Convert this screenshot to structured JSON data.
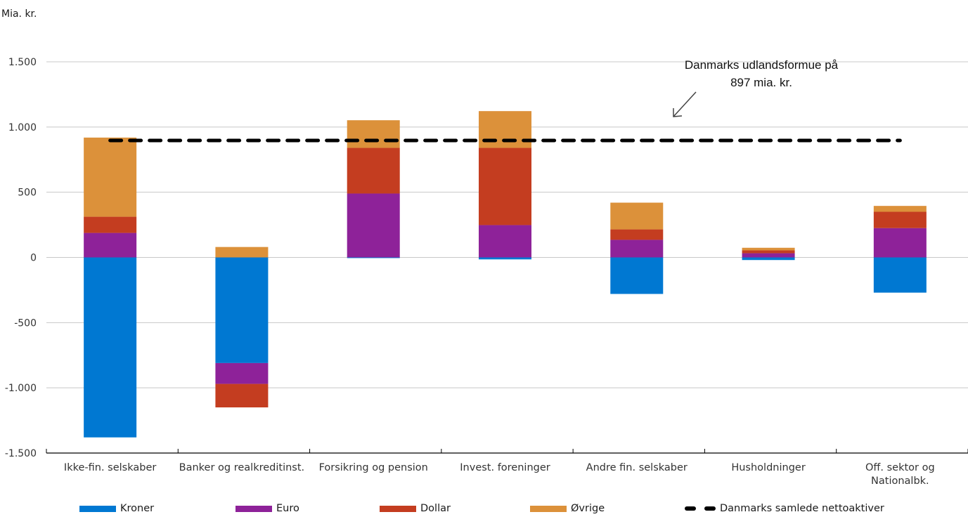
{
  "chart_data": {
    "type": "bar",
    "stacked": true,
    "title": "",
    "ylabel": "Mia. kr.",
    "xlabel": "",
    "ylim": [
      -1500,
      1500
    ],
    "yticks": [
      1500,
      1000,
      500,
      0,
      -500,
      -1000,
      -1500
    ],
    "ytick_labels": [
      "1.500",
      "1.000",
      "500",
      "0",
      "-500",
      "-1.000",
      "-1.500"
    ],
    "grid": true,
    "categories": [
      [
        "Ikke-fin.  selskaber"
      ],
      [
        "Banker og realkreditinst."
      ],
      [
        "Forsikring og pension"
      ],
      [
        "Invest. foreninger"
      ],
      [
        "Andre fin. selskaber"
      ],
      [
        "Husholdninger"
      ],
      [
        "Off. sektor og",
        "Nationalbk."
      ]
    ],
    "series": [
      {
        "name": "Kroner",
        "color": "#0078D2",
        "values": [
          -1380,
          -810,
          -5,
          -15,
          -280,
          -20,
          -270
        ]
      },
      {
        "name": "Euro",
        "color": "#8E2299",
        "values": [
          188,
          -160,
          490,
          248,
          135,
          32,
          225
        ]
      },
      {
        "name": "Dollar",
        "color": "#C43D20",
        "values": [
          124,
          -180,
          350,
          592,
          80,
          22,
          125
        ]
      },
      {
        "name": "Øvrige",
        "color": "#DC913A",
        "values": [
          607,
          80,
          212,
          282,
          205,
          20,
          45
        ]
      }
    ],
    "reference_line": {
      "name": "Danmarks samlede nettoaktiver",
      "value": 897,
      "style": "dashed",
      "color": "#000000"
    },
    "annotation": {
      "lines": [
        "Danmarks udlandsformue på",
        "897 mia. kr."
      ]
    },
    "legend_position": "bottom"
  }
}
